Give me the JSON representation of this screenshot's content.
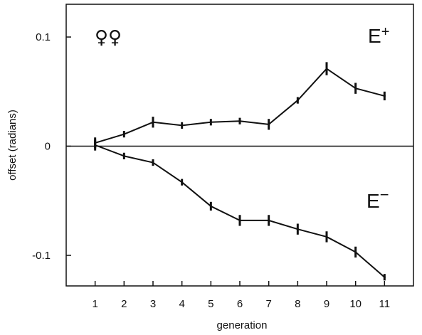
{
  "chart_data": {
    "type": "line",
    "title": "",
    "xlabel": "generation",
    "ylabel": "offset (radians)",
    "x": [
      1,
      2,
      3,
      4,
      5,
      6,
      7,
      8,
      9,
      10,
      11
    ],
    "xlim": [
      0,
      12
    ],
    "ylim": [
      -0.128,
      0.13
    ],
    "x_ticks": [
      "1",
      "2",
      "3",
      "4",
      "5",
      "6",
      "7",
      "8",
      "9",
      "10",
      "11"
    ],
    "y_ticks": [
      {
        "value": 0.1,
        "label": "0.1"
      },
      {
        "value": 0,
        "label": "0"
      },
      {
        "value": -0.1,
        "label": "-0.1"
      }
    ],
    "zero_line": true,
    "grid": false,
    "legend": "none",
    "symbol_annotation": "♀♀",
    "series": [
      {
        "name": "E+",
        "values": [
          0.003,
          0.011,
          0.022,
          0.019,
          0.022,
          0.023,
          0.02,
          0.042,
          0.071,
          0.053,
          0.046
        ],
        "errors": [
          0.005,
          0.003,
          0.005,
          0.003,
          0.003,
          0.003,
          0.005,
          0.003,
          0.006,
          0.005,
          0.004
        ]
      },
      {
        "name": "E−",
        "display_base": "E",
        "display_sup": "−",
        "values": [
          0.001,
          -0.009,
          -0.015,
          -0.033,
          -0.055,
          -0.068,
          -0.068,
          -0.076,
          -0.083,
          -0.097,
          -0.12
        ],
        "errors": [
          0.005,
          0.003,
          0.003,
          0.003,
          0.004,
          0.005,
          0.005,
          0.005,
          0.005,
          0.005,
          0.003
        ]
      }
    ]
  },
  "labels": {
    "eplus_base": "E",
    "eplus_sup": "+",
    "eminus_base": "E",
    "eminus_sup": "−"
  }
}
